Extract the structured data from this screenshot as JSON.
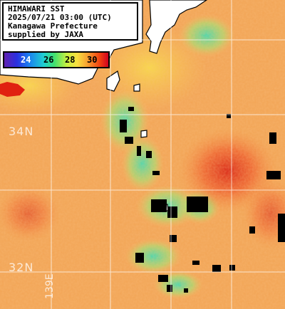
{
  "title": {
    "line1": "HIMAWARI SST",
    "line2": "2025/07/21 03:00 (UTC)",
    "line3": "Kanagawa Prefecture",
    "line4": "supplied by JAXA"
  },
  "colorbar": {
    "ticks": [
      "24",
      "26",
      "28",
      "30"
    ],
    "tick_colors": [
      "#ffffff",
      "#000000",
      "#000000",
      "#000000"
    ]
  },
  "latitude_labels": [
    "34N",
    "32N"
  ],
  "longitude_labels": [
    "139E"
  ],
  "colors": {
    "land": "#ffffff",
    "cloud_mask": "#000000",
    "sea_warm": "#f0a050",
    "sea_hot": "#e03010",
    "sea_cool": "#50d0a0",
    "grid": "#ffffff"
  }
}
